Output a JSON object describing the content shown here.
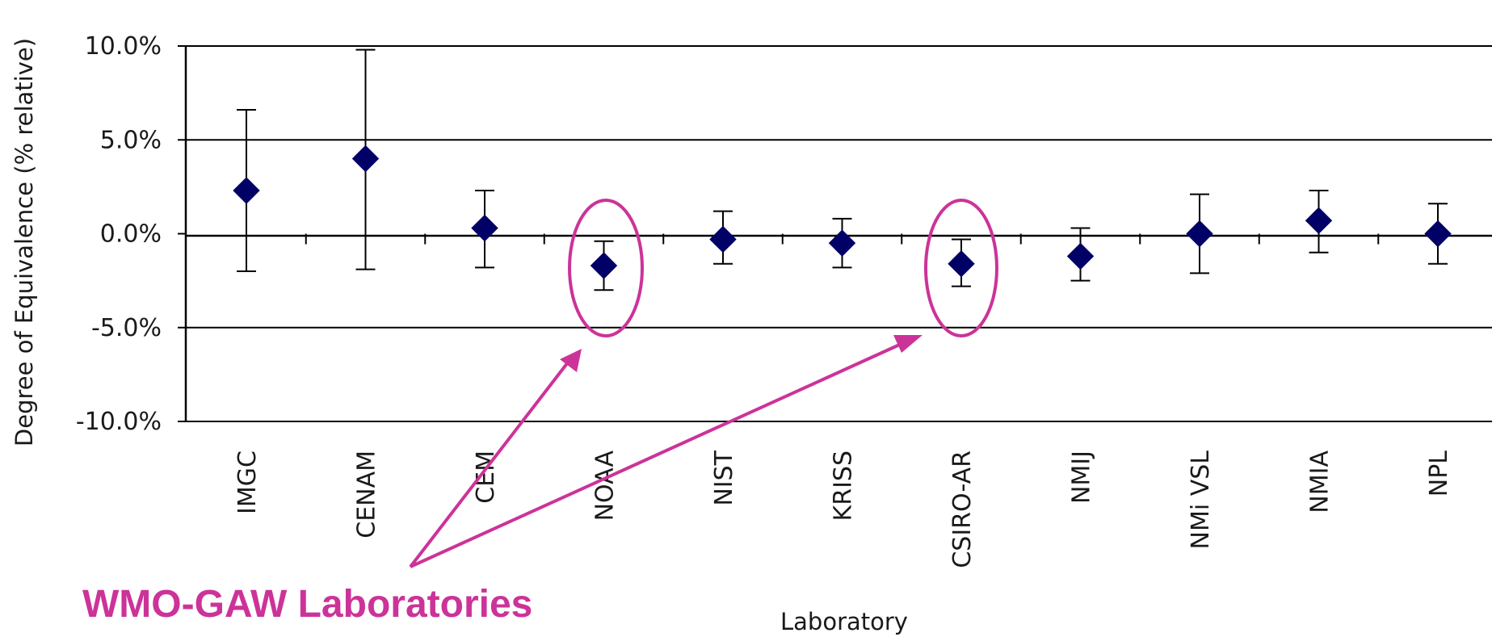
{
  "chart_data": {
    "type": "scatter",
    "title": "",
    "xlabel": "Laboratory",
    "ylabel": "Degree of Equivalence (% relative)",
    "ylim": [
      -10.0,
      10.0
    ],
    "yticks": [
      "10.0%",
      "5.0%",
      "0.0%",
      "-5.0%",
      "-10.0%"
    ],
    "ytick_values": [
      10.0,
      5.0,
      0.0,
      -5.0,
      -10.0
    ],
    "grid": true,
    "categories": [
      "IMGC",
      "CENAM",
      "CEM",
      "NOAA",
      "NIST",
      "KRISS",
      "CSIRO-AR",
      "NMIJ",
      "NMi VSL",
      "NMIA",
      "NPL"
    ],
    "series": [
      {
        "values": [
          2.3,
          4.0,
          0.3,
          -1.7,
          -0.3,
          -0.5,
          -1.6,
          -1.2,
          0.0,
          0.7,
          0.0
        ],
        "error_upper": [
          6.6,
          9.8,
          2.3,
          -0.4,
          1.2,
          0.8,
          -0.3,
          0.3,
          2.1,
          2.3,
          1.6
        ],
        "error_lower": [
          -2.0,
          -1.9,
          -1.8,
          -3.0,
          -1.6,
          -1.8,
          -2.8,
          -2.5,
          -2.1,
          -1.0,
          -1.6
        ],
        "marker": "diamond",
        "color": "#000066"
      }
    ],
    "annotation": {
      "text": "WMO-GAW Laboratories",
      "color": "#cc3399",
      "highlighted": [
        "NOAA",
        "CSIRO-AR"
      ]
    }
  }
}
